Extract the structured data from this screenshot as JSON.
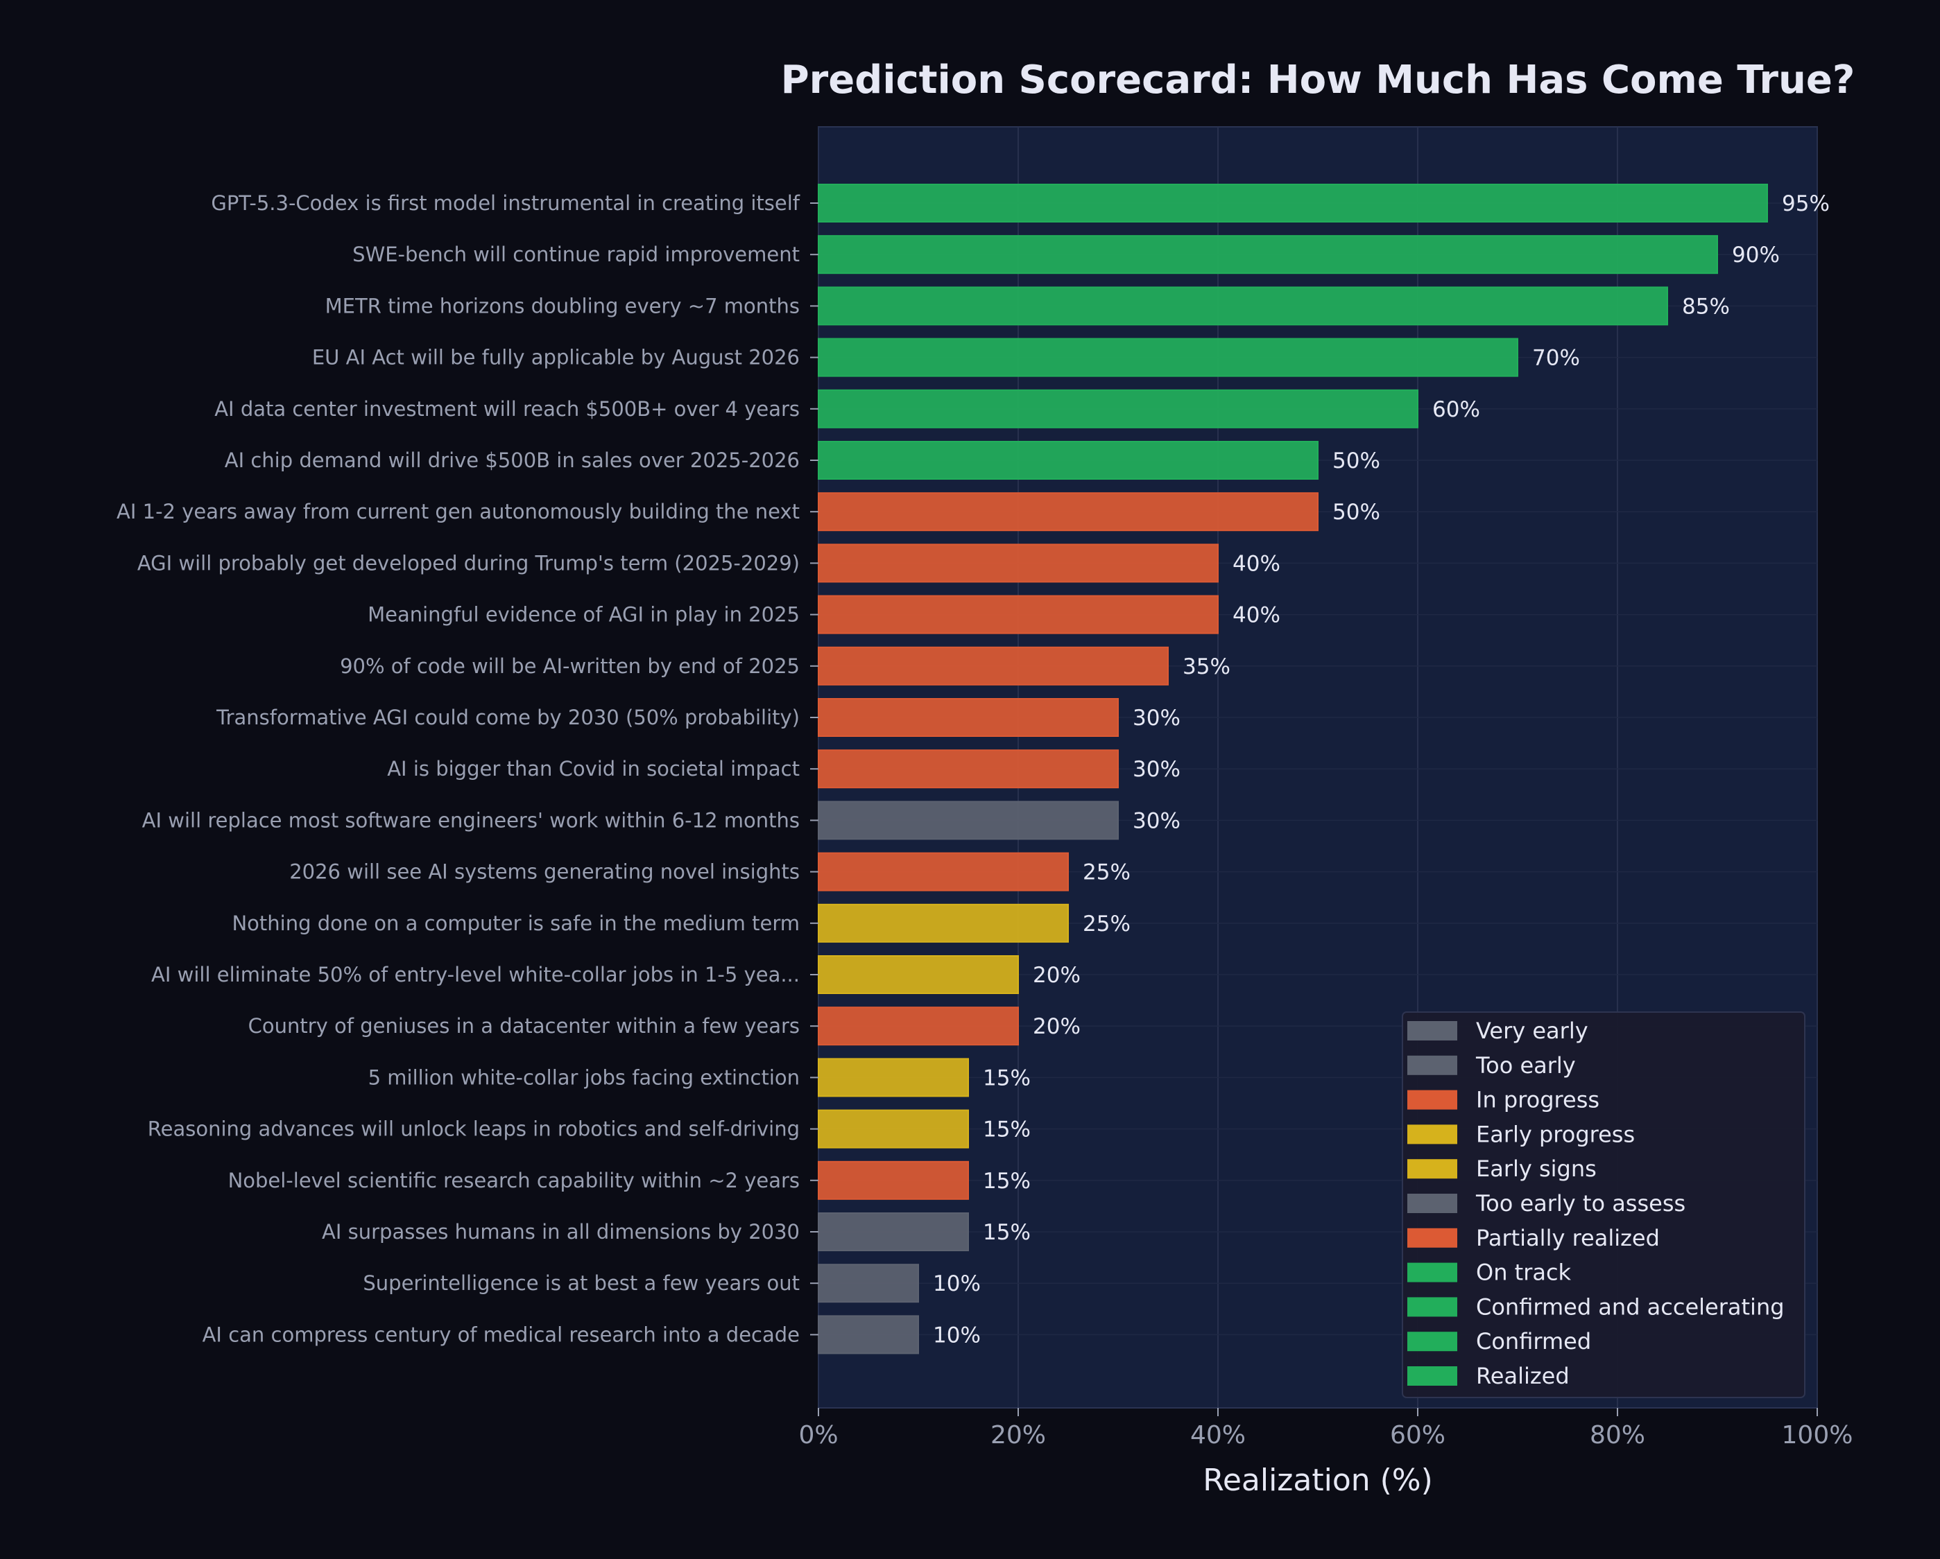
{
  "chart_data": {
    "type": "bar",
    "orientation": "horizontal",
    "title": "Prediction Scorecard: How Much Has Come True?",
    "xlabel": "Realization (%)",
    "ylabel": "",
    "xlim": [
      0,
      100
    ],
    "xticks": [
      "0%",
      "20%",
      "40%",
      "60%",
      "80%",
      "100%"
    ],
    "grid": true,
    "legend_position": "lower-right",
    "colors": {
      "background": "#0b0c15",
      "plot_background": "#151f3b",
      "green": "#22ae5b",
      "orange": "#dc5a34",
      "yellow": "#d6b21c",
      "gray": "#5c6270"
    },
    "items": [
      {
        "label": "GPT-5.3-Codex is first model instrumental in creating itself",
        "value": 95,
        "value_label": "95%",
        "color": "green"
      },
      {
        "label": "SWE-bench will continue rapid improvement",
        "value": 90,
        "value_label": "90%",
        "color": "green"
      },
      {
        "label": "METR time horizons doubling every ~7 months",
        "value": 85,
        "value_label": "85%",
        "color": "green"
      },
      {
        "label": "EU AI Act will be fully applicable by August 2026",
        "value": 70,
        "value_label": "70%",
        "color": "green"
      },
      {
        "label": "AI data center investment will reach $500B+ over 4 years",
        "value": 60,
        "value_label": "60%",
        "color": "green"
      },
      {
        "label": "AI chip demand will drive $500B in sales over 2025-2026",
        "value": 50,
        "value_label": "50%",
        "color": "green"
      },
      {
        "label": "AI 1-2 years away from current gen autonomously building the next",
        "value": 50,
        "value_label": "50%",
        "color": "orange"
      },
      {
        "label": "AGI will probably get developed during Trump's term (2025-2029)",
        "value": 40,
        "value_label": "40%",
        "color": "orange"
      },
      {
        "label": "Meaningful evidence of AGI in play in 2025",
        "value": 40,
        "value_label": "40%",
        "color": "orange"
      },
      {
        "label": "90% of code will be AI-written by end of 2025",
        "value": 35,
        "value_label": "35%",
        "color": "orange"
      },
      {
        "label": "Transformative AGI could come by 2030 (50% probability)",
        "value": 30,
        "value_label": "30%",
        "color": "orange"
      },
      {
        "label": "AI is bigger than Covid in societal impact",
        "value": 30,
        "value_label": "30%",
        "color": "orange"
      },
      {
        "label": "AI will replace most software engineers' work within 6-12 months",
        "value": 30,
        "value_label": "30%",
        "color": "gray"
      },
      {
        "label": "2026 will see AI systems generating novel insights",
        "value": 25,
        "value_label": "25%",
        "color": "orange"
      },
      {
        "label": "Nothing done on a computer is safe in the medium term",
        "value": 25,
        "value_label": "25%",
        "color": "yellow"
      },
      {
        "label": "AI will eliminate 50% of entry-level white-collar jobs in 1-5 yea...",
        "value": 20,
        "value_label": "20%",
        "color": "yellow"
      },
      {
        "label": "Country of geniuses in a datacenter within a few years",
        "value": 20,
        "value_label": "20%",
        "color": "orange"
      },
      {
        "label": "5 million white-collar jobs facing extinction",
        "value": 15,
        "value_label": "15%",
        "color": "yellow"
      },
      {
        "label": "Reasoning advances will unlock leaps in robotics and self-driving",
        "value": 15,
        "value_label": "15%",
        "color": "yellow"
      },
      {
        "label": "Nobel-level scientific research capability within ~2 years",
        "value": 15,
        "value_label": "15%",
        "color": "orange"
      },
      {
        "label": "AI surpasses humans in all dimensions by 2030",
        "value": 15,
        "value_label": "15%",
        "color": "gray"
      },
      {
        "label": "Superintelligence is at best a few years out",
        "value": 10,
        "value_label": "10%",
        "color": "gray"
      },
      {
        "label": "AI can compress century of medical research into a decade",
        "value": 10,
        "value_label": "10%",
        "color": "gray"
      }
    ],
    "legend": [
      {
        "label": "Very early",
        "color": "gray"
      },
      {
        "label": "Too early",
        "color": "gray"
      },
      {
        "label": "In progress",
        "color": "orange"
      },
      {
        "label": "Early progress",
        "color": "yellow"
      },
      {
        "label": "Early signs",
        "color": "yellow"
      },
      {
        "label": "Too early to assess",
        "color": "gray"
      },
      {
        "label": "Partially realized",
        "color": "orange"
      },
      {
        "label": "On track",
        "color": "green"
      },
      {
        "label": "Confirmed and accelerating",
        "color": "green"
      },
      {
        "label": "Confirmed",
        "color": "green"
      },
      {
        "label": "Realized",
        "color": "green"
      }
    ]
  }
}
